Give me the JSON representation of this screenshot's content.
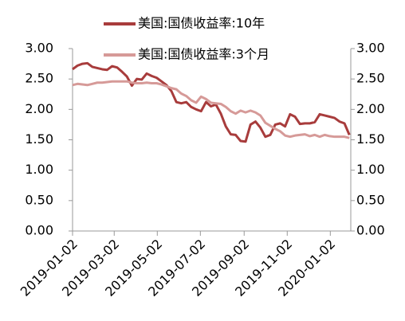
{
  "chart_data": {
    "type": "line",
    "x": [
      "2019-01-02",
      "2019-01-09",
      "2019-01-16",
      "2019-01-23",
      "2019-01-30",
      "2019-02-06",
      "2019-02-13",
      "2019-02-20",
      "2019-02-27",
      "2019-03-06",
      "2019-03-13",
      "2019-03-20",
      "2019-03-27",
      "2019-04-03",
      "2019-04-10",
      "2019-04-17",
      "2019-04-24",
      "2019-05-01",
      "2019-05-08",
      "2019-05-15",
      "2019-05-22",
      "2019-05-29",
      "2019-06-05",
      "2019-06-12",
      "2019-06-19",
      "2019-06-26",
      "2019-07-03",
      "2019-07-10",
      "2019-07-17",
      "2019-07-24",
      "2019-07-31",
      "2019-08-07",
      "2019-08-14",
      "2019-08-21",
      "2019-08-28",
      "2019-09-04",
      "2019-09-11",
      "2019-09-18",
      "2019-09-25",
      "2019-10-02",
      "2019-10-09",
      "2019-10-16",
      "2019-10-23",
      "2019-10-30",
      "2019-11-06",
      "2019-11-13",
      "2019-11-20",
      "2019-11-27",
      "2019-12-04",
      "2019-12-11",
      "2019-12-18",
      "2019-12-25",
      "2020-01-01",
      "2020-01-08",
      "2020-01-15",
      "2020-01-22",
      "2020-01-29"
    ],
    "series": [
      {
        "name": "美国:国债收益率:10年",
        "color": "#a83c3c",
        "values": [
          2.66,
          2.72,
          2.75,
          2.76,
          2.7,
          2.68,
          2.66,
          2.65,
          2.71,
          2.69,
          2.62,
          2.54,
          2.39,
          2.5,
          2.49,
          2.59,
          2.55,
          2.52,
          2.46,
          2.4,
          2.3,
          2.12,
          2.1,
          2.12,
          2.04,
          2.0,
          1.97,
          2.12,
          2.05,
          2.08,
          1.93,
          1.72,
          1.59,
          1.58,
          1.48,
          1.47,
          1.75,
          1.8,
          1.7,
          1.55,
          1.58,
          1.75,
          1.77,
          1.72,
          1.92,
          1.88,
          1.76,
          1.77,
          1.77,
          1.79,
          1.92,
          1.9,
          1.88,
          1.86,
          1.8,
          1.77,
          1.58
        ]
      },
      {
        "name": "美国:国债收益率:3个月",
        "color": "#d69a98",
        "axis": "y2",
        "values": [
          2.4,
          2.42,
          2.41,
          2.4,
          2.42,
          2.44,
          2.44,
          2.45,
          2.46,
          2.46,
          2.46,
          2.46,
          2.44,
          2.43,
          2.43,
          2.44,
          2.43,
          2.43,
          2.41,
          2.38,
          2.35,
          2.33,
          2.26,
          2.22,
          2.15,
          2.11,
          2.21,
          2.17,
          2.11,
          2.1,
          2.09,
          2.04,
          1.97,
          1.93,
          1.98,
          1.95,
          1.98,
          1.95,
          1.9,
          1.78,
          1.73,
          1.68,
          1.64,
          1.57,
          1.55,
          1.57,
          1.58,
          1.59,
          1.56,
          1.58,
          1.55,
          1.58,
          1.56,
          1.55,
          1.55,
          1.55,
          1.53
        ]
      }
    ],
    "xlim": [
      "2019-01-02",
      "2020-01-31"
    ],
    "xticks": [
      "2019-01-02",
      "2019-03-02",
      "2019-05-02",
      "2019-07-02",
      "2019-09-02",
      "2019-11-02",
      "2020-01-02"
    ],
    "ylim": [
      0,
      3
    ],
    "yticks": [
      {
        "value": 0,
        "label": "0.00"
      },
      {
        "value": 0.5,
        "label": "0.50"
      },
      {
        "value": 1,
        "label": "1.00"
      },
      {
        "value": 1.5,
        "label": "1.50"
      },
      {
        "value": 2,
        "label": "2.00"
      },
      {
        "value": 2.5,
        "label": "2.50"
      },
      {
        "value": 3,
        "label": "3.00"
      }
    ],
    "y2lim": [
      0,
      3
    ],
    "y2ticks": [
      {
        "value": 0,
        "label": "0.00"
      },
      {
        "value": 0.5,
        "label": "0.50"
      },
      {
        "value": 1,
        "label": "1.00"
      },
      {
        "value": 1.5,
        "label": "1.50"
      },
      {
        "value": 2,
        "label": "2.00"
      },
      {
        "value": 2.5,
        "label": "2.50"
      },
      {
        "value": 3,
        "label": "3.00"
      }
    ],
    "legend": "top"
  }
}
